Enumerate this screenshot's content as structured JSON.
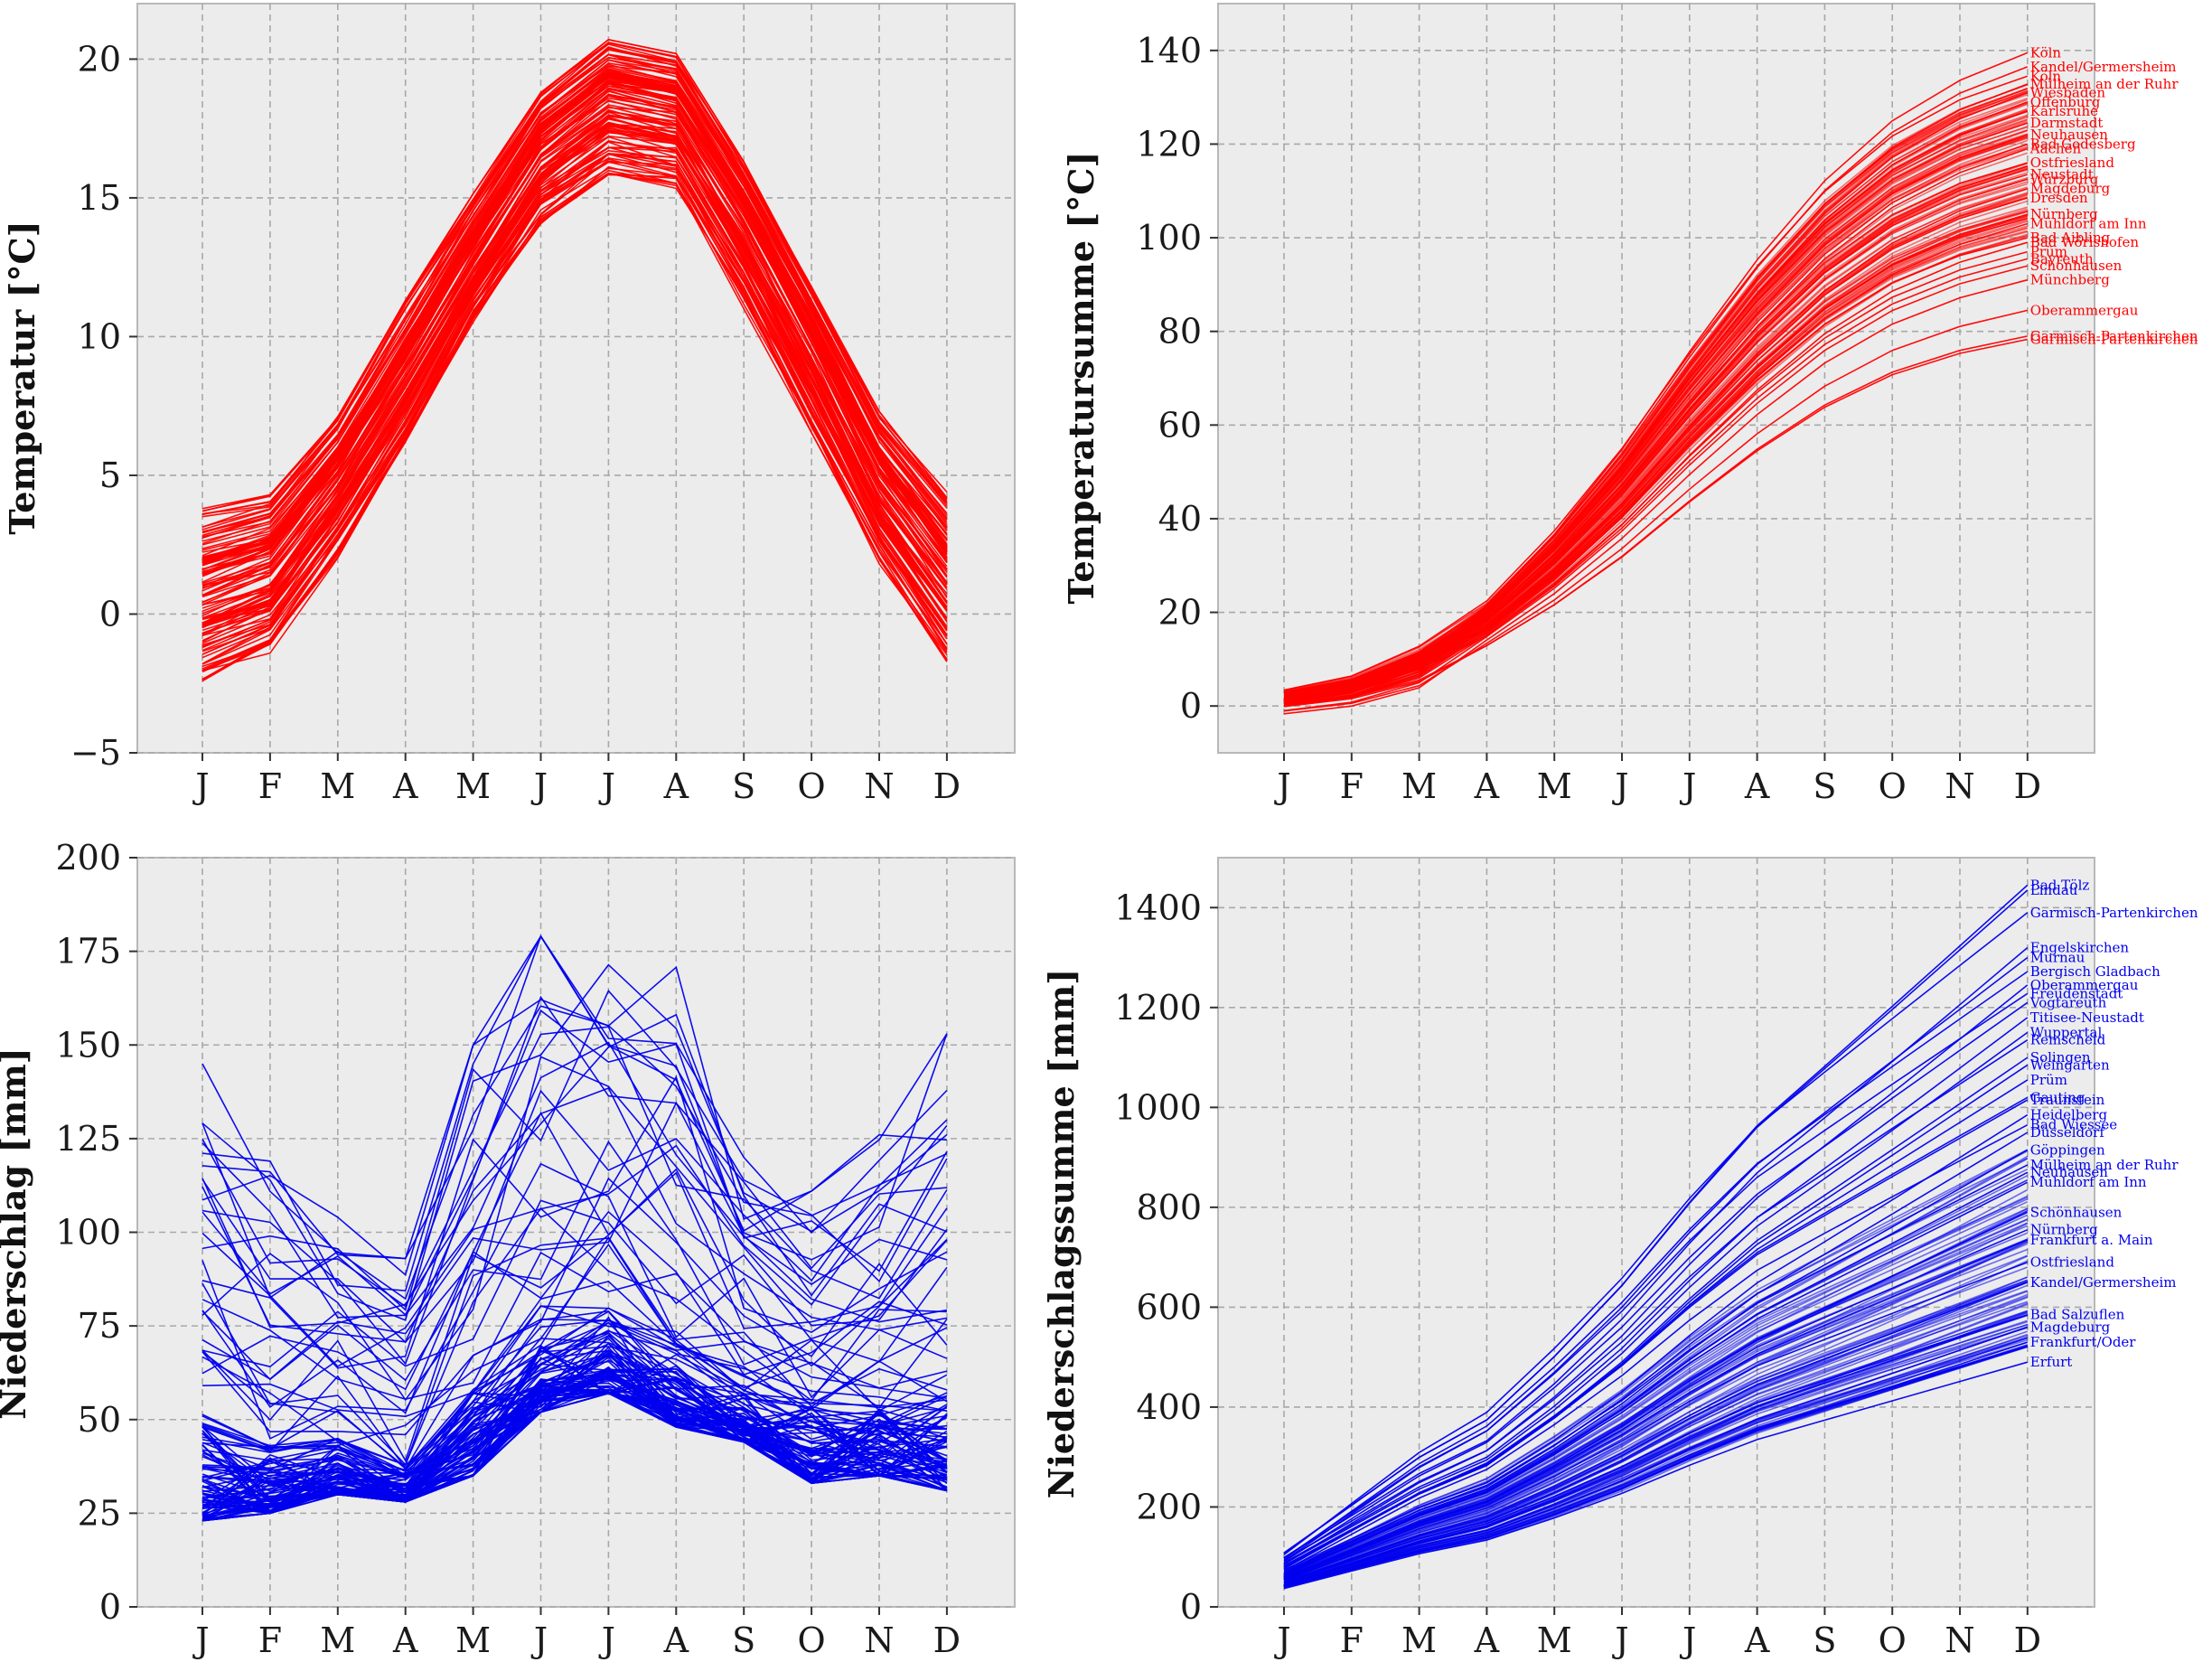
{
  "months": [
    "J",
    "F",
    "M",
    "A",
    "M",
    "J",
    "J",
    "A",
    "S",
    "O",
    "N",
    "D"
  ],
  "colors": {
    "temperature": "#ff0000",
    "precipitation": "#0000ee",
    "background": "#ececec",
    "grid": "#a8a8a8"
  },
  "chart_data": [
    {
      "id": "temp",
      "type": "line",
      "ylabel": "Temperatur [$^\\circ$C]",
      "ylim": [
        -5,
        22
      ],
      "yticks": [
        -5,
        0,
        5,
        10,
        15,
        20
      ],
      "grid": true,
      "color": "#ff0000",
      "series_count": 120,
      "envelope": {
        "low": [
          -2.5,
          -1.5,
          2.0,
          6.0,
          10.5,
          14.0,
          15.7,
          15.3,
          11.0,
          6.5,
          1.8,
          -1.8
        ],
        "mid": [
          1.0,
          1.8,
          5.0,
          8.9,
          13.0,
          16.9,
          18.8,
          18.3,
          14.5,
          9.9,
          5.0,
          1.7
        ],
        "high": [
          3.8,
          4.3,
          7.2,
          11.3,
          15.2,
          18.8,
          20.7,
          20.2,
          16.3,
          11.8,
          7.3,
          4.4
        ]
      }
    },
    {
      "id": "tempsum",
      "type": "line",
      "ylabel": "Temperatursumme [$^\\circ$C]",
      "ylim": [
        -10,
        150
      ],
      "yticks": [
        0,
        20,
        40,
        60,
        80,
        100,
        120,
        140
      ],
      "grid": true,
      "color": "#ff0000",
      "series_count": 120,
      "label_month": "D",
      "station_labels": [
        {
          "text": "Köln",
          "value": 139.5
        },
        {
          "text": "Kandel/Germersheim",
          "value": 136.5
        },
        {
          "text": "Köln",
          "value": 134.5
        },
        {
          "text": "Mülheim an der Ruhr",
          "value": 132.8
        },
        {
          "text": "Wiesbaden",
          "value": 131.0
        },
        {
          "text": "Offenburg",
          "value": 129.0
        },
        {
          "text": "Karlsruhe",
          "value": 127.0
        },
        {
          "text": "Darmstadt",
          "value": 124.5
        },
        {
          "text": "Neuhausen",
          "value": 122.0
        },
        {
          "text": "Bad Godesberg",
          "value": 120.0
        },
        {
          "text": "Aachen",
          "value": 119.0
        },
        {
          "text": "Ostfriesland",
          "value": 116.0
        },
        {
          "text": "Neustadt",
          "value": 113.5
        },
        {
          "text": "Würzburg",
          "value": 112.5
        },
        {
          "text": "Magdeburg",
          "value": 110.5
        },
        {
          "text": "Dresden",
          "value": 108.5
        },
        {
          "text": "Nürnberg",
          "value": 105.0
        },
        {
          "text": "Mühldorf am Inn",
          "value": 103.0
        },
        {
          "text": "Bad Aibling",
          "value": 100.0
        },
        {
          "text": "Bad Wörishofen",
          "value": 99.0
        },
        {
          "text": "Prüm",
          "value": 97.0
        },
        {
          "text": "Bayreuth",
          "value": 95.5
        },
        {
          "text": "Schönhausen",
          "value": 94.0
        },
        {
          "text": "Münchberg",
          "value": 91.0
        },
        {
          "text": "Oberammergau",
          "value": 84.5
        },
        {
          "text": "Garmisch-Partenkirchen",
          "value": 79.0
        },
        {
          "text": "Garmisch-Partenkirchen",
          "value": 78.3
        }
      ]
    },
    {
      "id": "prec",
      "type": "line",
      "ylabel": "Niederschlag [mm]",
      "ylim": [
        0,
        200
      ],
      "yticks": [
        0,
        25,
        50,
        75,
        100,
        125,
        150,
        175,
        200
      ],
      "grid": true,
      "color": "#0000ee",
      "series_count": 120,
      "envelope": {
        "low": [
          23,
          25,
          30,
          28,
          35,
          52,
          57,
          48,
          44,
          33,
          35,
          31
        ],
        "mid": [
          52,
          44,
          45,
          38,
          60,
          72,
          80,
          72,
          60,
          56,
          55,
          57
        ],
        "high": [
          145,
          120,
          104,
          93,
          150,
          179,
          175,
          174,
          120,
          111,
          126,
          153
        ]
      }
    },
    {
      "id": "precsum",
      "type": "line",
      "ylabel": "Niederschlagssumme [mm]",
      "ylim": [
        0,
        1500
      ],
      "yticks": [
        0,
        200,
        400,
        600,
        800,
        1000,
        1200,
        1400
      ],
      "grid": true,
      "color": "#0000ee",
      "series_count": 120,
      "label_month": "D",
      "station_labels": [
        {
          "text": "Bad Tölz",
          "value": 1445
        },
        {
          "text": "Lindau",
          "value": 1435
        },
        {
          "text": "Garmisch-Partenkirchen",
          "value": 1390
        },
        {
          "text": "Engelskirchen",
          "value": 1320
        },
        {
          "text": "Murnau",
          "value": 1300
        },
        {
          "text": "Bergisch Gladbach",
          "value": 1272
        },
        {
          "text": "Oberammergau",
          "value": 1245
        },
        {
          "text": "Freudenstadt",
          "value": 1228
        },
        {
          "text": "Vogtareuth",
          "value": 1210
        },
        {
          "text": "Titisee-Neustadt",
          "value": 1180
        },
        {
          "text": "Wuppertal",
          "value": 1150
        },
        {
          "text": "Remscheid",
          "value": 1135
        },
        {
          "text": "Solingen",
          "value": 1100
        },
        {
          "text": "Weingarten",
          "value": 1085
        },
        {
          "text": "Prüm",
          "value": 1055
        },
        {
          "text": "Gauting",
          "value": 1020
        },
        {
          "text": "Traunstein",
          "value": 1015
        },
        {
          "text": "Heidelberg",
          "value": 985
        },
        {
          "text": "Bad Wiessee",
          "value": 965
        },
        {
          "text": "Düsseldorf",
          "value": 950
        },
        {
          "text": "Göppingen",
          "value": 915
        },
        {
          "text": "Mülheim an der Ruhr",
          "value": 885
        },
        {
          "text": "Neuhausen",
          "value": 870
        },
        {
          "text": "Mühldorf am Inn",
          "value": 850
        },
        {
          "text": "Schönhausen",
          "value": 790
        },
        {
          "text": "Nürnberg",
          "value": 755
        },
        {
          "text": "Frankfurt a. Main",
          "value": 735
        },
        {
          "text": "Ostfriesland",
          "value": 690
        },
        {
          "text": "Kandel/Germersheim",
          "value": 650
        },
        {
          "text": "Bad Salzuflen",
          "value": 585
        },
        {
          "text": "Magdeburg",
          "value": 560
        },
        {
          "text": "Frankfurt/Oder",
          "value": 530
        },
        {
          "text": "Erfurt",
          "value": 490
        }
      ]
    }
  ]
}
